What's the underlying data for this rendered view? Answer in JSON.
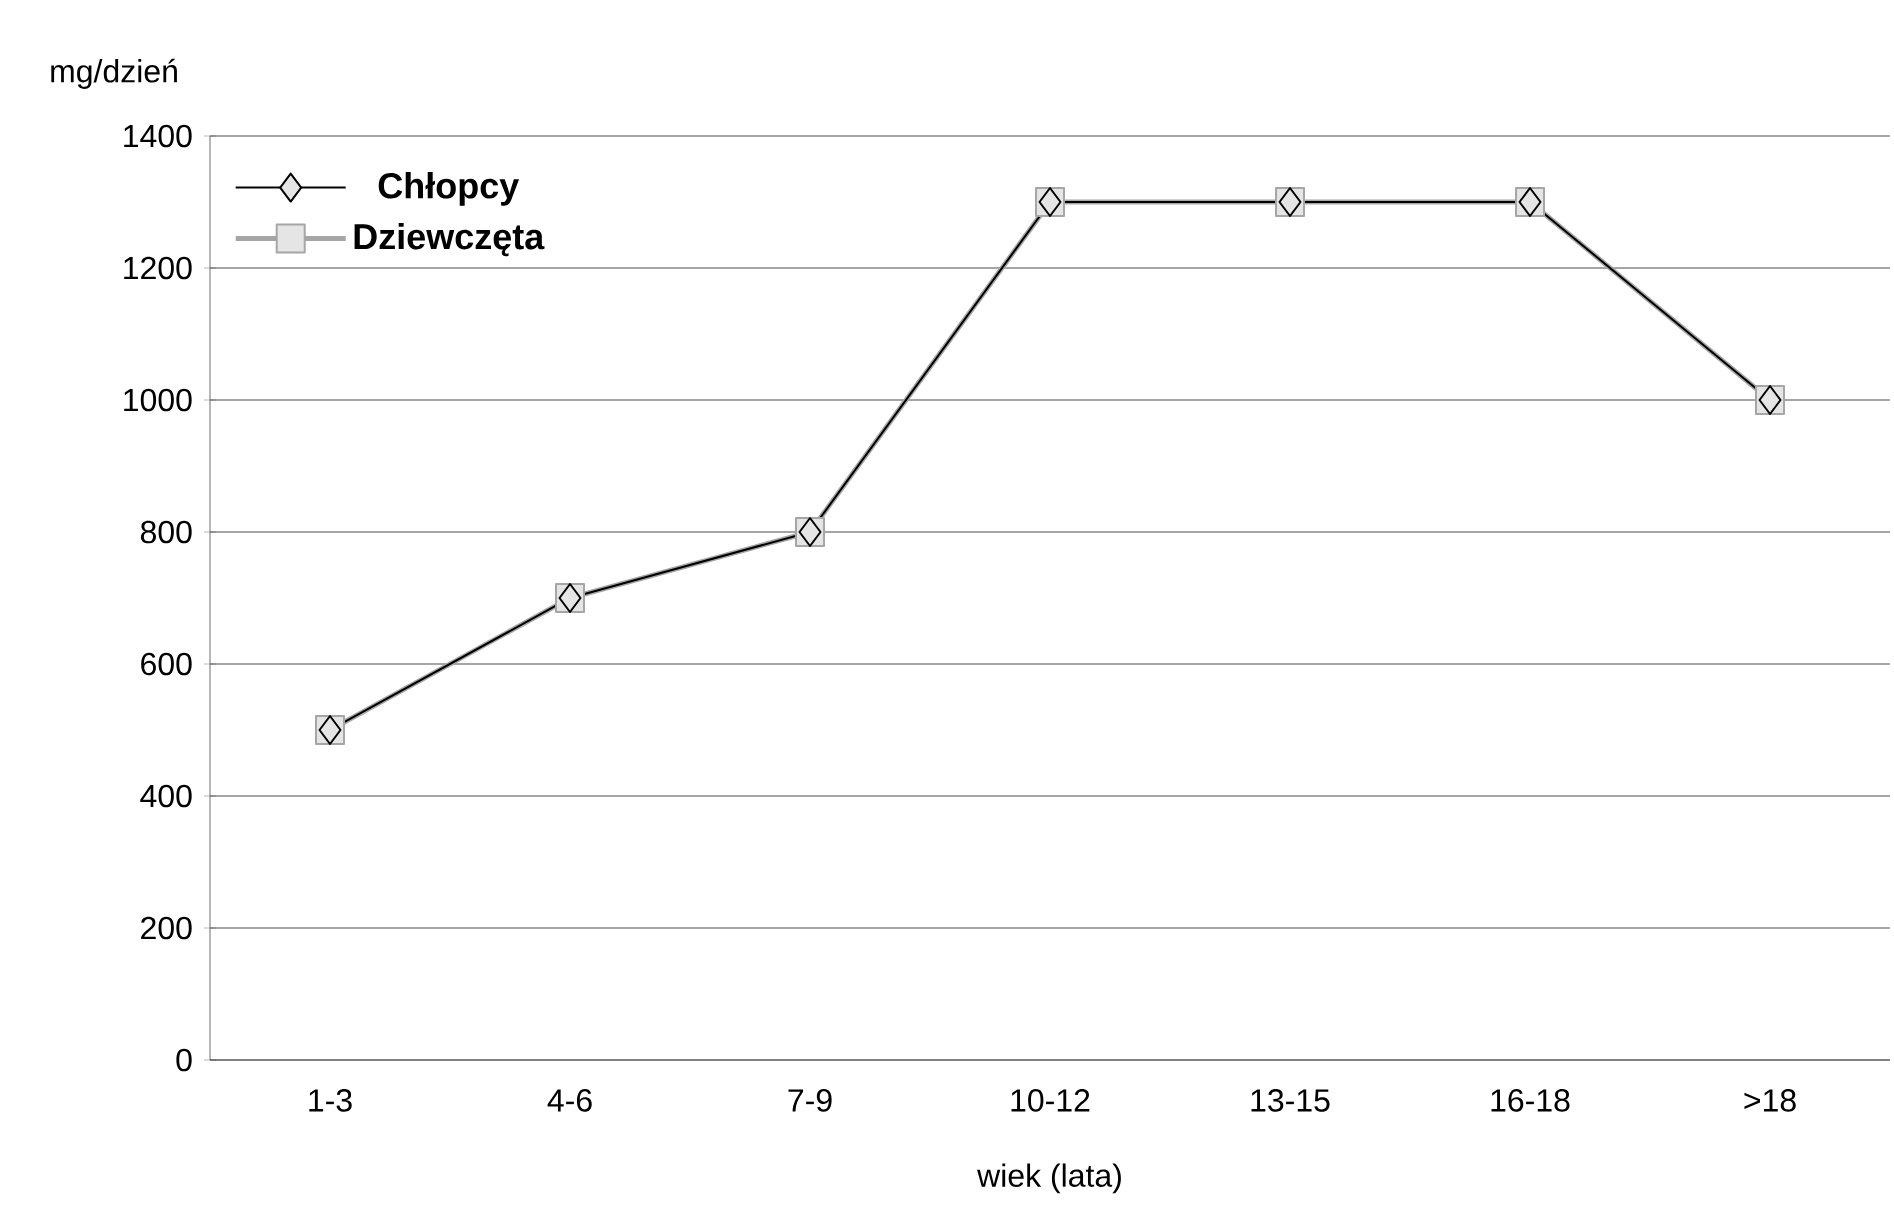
{
  "chart_data": {
    "type": "line",
    "ylabel": "mg/dzień",
    "xlabel": "wiek (lata)",
    "categories": [
      "1-3",
      "4-6",
      "7-9",
      "10-12",
      "13-15",
      "16-18",
      ">18"
    ],
    "series": [
      {
        "name": "Chłopcy",
        "color": "#000000",
        "marker": "diamond",
        "values": [
          500,
          700,
          800,
          1300,
          1300,
          1300,
          1000
        ]
      },
      {
        "name": "Dziewczęta",
        "color": "#a6a6a6",
        "marker": "square",
        "values": [
          500,
          700,
          800,
          1300,
          1300,
          1300,
          1000
        ]
      }
    ],
    "ylim": [
      0,
      1400
    ],
    "yticks": [
      0,
      200,
      400,
      600,
      800,
      1000,
      1200,
      1400
    ],
    "grid": "y",
    "legend": "top left"
  }
}
